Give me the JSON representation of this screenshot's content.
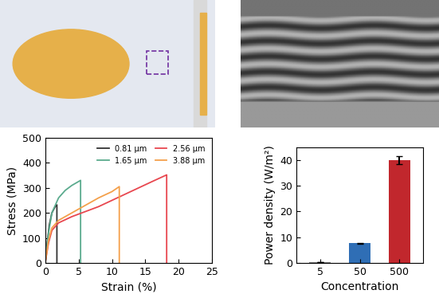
{
  "chart_data": [
    {
      "type": "line",
      "x_label": "Strain (%)",
      "y_label": "Stress (MPa)",
      "xlim": [
        0,
        25
      ],
      "xticks": [
        0,
        5,
        10,
        15,
        20,
        25
      ],
      "ylim": [
        0,
        500
      ],
      "yticks": [
        0,
        100,
        200,
        300,
        400,
        500
      ],
      "legend": "upper right",
      "series": [
        {
          "name": "0.81 μm",
          "color": "#333333",
          "x": [
            0,
            0.3,
            0.6,
            1.0,
            1.5,
            1.75,
            1.75
          ],
          "values": [
            0,
            80,
            150,
            200,
            225,
            232,
            0
          ]
        },
        {
          "name": "1.65 μm",
          "color": "#5bab8e",
          "x": [
            0,
            0.5,
            1,
            2,
            3,
            4,
            5.3,
            5.3
          ],
          "values": [
            0,
            120,
            200,
            260,
            290,
            310,
            330,
            0
          ]
        },
        {
          "name": "2.56 μm",
          "color": "#e8474f",
          "x": [
            0,
            0.5,
            1,
            2,
            4,
            6,
            8,
            10,
            12,
            14,
            16,
            18.2,
            18.2
          ],
          "values": [
            0,
            80,
            130,
            160,
            185,
            205,
            225,
            250,
            275,
            300,
            325,
            352,
            0
          ]
        },
        {
          "name": "3.88 μm",
          "color": "#f4a04b",
          "x": [
            0,
            0.5,
            1,
            2,
            4,
            6,
            8,
            10,
            11.1,
            11.1
          ],
          "values": [
            0,
            90,
            140,
            170,
            200,
            230,
            260,
            285,
            305,
            0
          ]
        }
      ]
    },
    {
      "type": "bar",
      "x_label": "Concentration",
      "y_label": "Power density (W/m²)",
      "categories": [
        "5",
        "50",
        "500"
      ],
      "values": [
        0.3,
        7.6,
        40.1
      ],
      "errors": [
        0.1,
        0.2,
        1.6
      ],
      "colors": [
        "#7f7f7f",
        "#2f6eb5",
        "#c1272d"
      ],
      "ylim": [
        0,
        45
      ],
      "yticks": [
        0,
        10,
        20,
        30,
        40
      ]
    }
  ]
}
